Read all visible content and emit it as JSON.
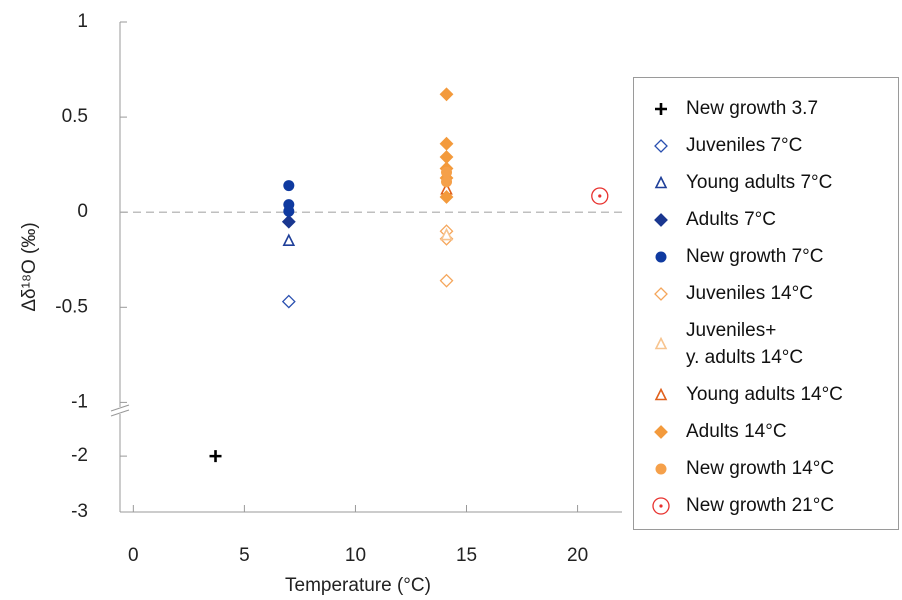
{
  "chart_data": {
    "type": "scatter",
    "xlabel": "Temperature (°C)",
    "ylabel": "Δδ¹⁸O (‰)",
    "xlim": [
      -0.6,
      22
    ],
    "xticks": [
      0,
      5,
      10,
      15,
      20
    ],
    "ylim": [
      -3,
      1
    ],
    "yticks": [
      1,
      0.5,
      0,
      -0.5,
      -1,
      -2,
      -3
    ],
    "ybreak": [
      -1.04,
      -1.3
    ],
    "hline": 0,
    "legend": "right",
    "series": [
      {
        "name": "New growth 3.7",
        "marker": "plus",
        "color": "#000000",
        "x": [
          3.7
        ],
        "values": [
          -2
        ]
      },
      {
        "name": "Juveniles 7°C",
        "marker": "diamond-open",
        "color": "#2a50b0",
        "x": [
          7
        ],
        "values": [
          -0.47
        ]
      },
      {
        "name": "Young adults 7°C",
        "marker": "triangle-open",
        "color": "#1f3f99",
        "x": [
          7
        ],
        "values": [
          -0.15
        ]
      },
      {
        "name": "Adults 7°C",
        "marker": "diamond",
        "color": "#1a3790",
        "x": [
          7
        ],
        "values": [
          -0.05
        ]
      },
      {
        "name": "New growth 7°C",
        "marker": "circle",
        "color": "#0f3aa0",
        "x": [
          7,
          7,
          7
        ],
        "values": [
          0.14,
          0.04,
          0.005
        ]
      },
      {
        "name": "Juveniles 14°C",
        "marker": "diamond-open",
        "color": "#f5a65b",
        "x": [
          14.1,
          14.1,
          14.1
        ],
        "values": [
          -0.1,
          -0.14,
          -0.36
        ]
      },
      {
        "name": "Juveniles+\ny. adults 14°C",
        "marker": "triangle-open",
        "color": "#f7c48f",
        "x": [
          14.1
        ],
        "values": [
          -0.12
        ]
      },
      {
        "name": "Young adults 14°C",
        "marker": "triangle-open",
        "color": "#e0601c",
        "x": [
          14.1
        ],
        "values": [
          0.12
        ]
      },
      {
        "name": "Adults 14°C",
        "marker": "diamond",
        "color": "#f39a3c",
        "x": [
          14.1,
          14.1,
          14.1,
          14.1,
          14.1,
          14.1
        ],
        "values": [
          0.62,
          0.36,
          0.29,
          0.23,
          0.18,
          0.08
        ]
      },
      {
        "name": "New growth 14°C",
        "marker": "circle",
        "color": "#f5a04a",
        "x": [
          14.1,
          14.1
        ],
        "values": [
          0.21,
          0.16
        ]
      },
      {
        "name": "New growth 21°C",
        "marker": "circle-dot",
        "color": "#e8322f",
        "x": [
          21
        ],
        "values": [
          0.085
        ]
      }
    ]
  }
}
